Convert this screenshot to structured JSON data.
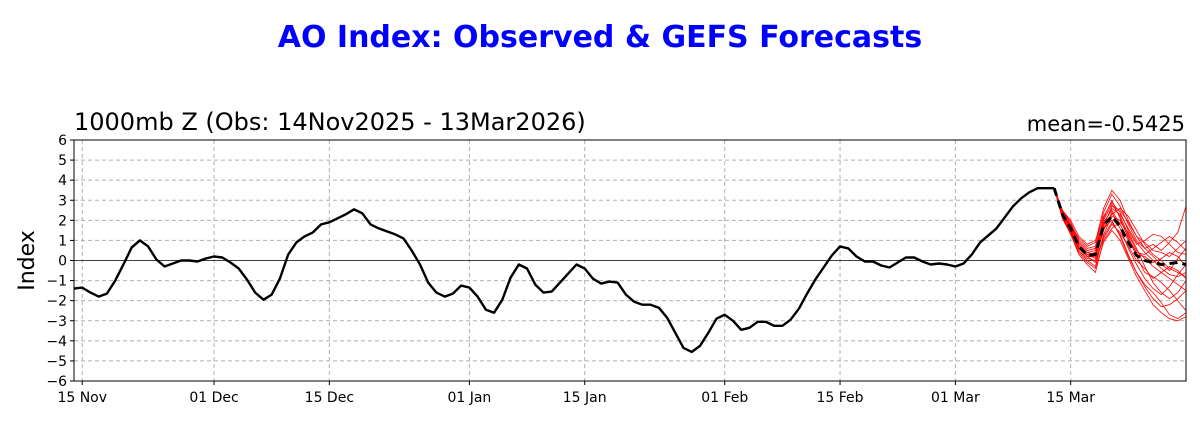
{
  "header": {
    "title": "AO Index: Observed & GEFS Forecasts",
    "subtitle": "1000mb Z (Obs: 14Nov2025 - 13Mar2026)",
    "mean": "mean=-0.5425"
  },
  "chart_data": {
    "type": "line",
    "title": "AO Index: Observed & GEFS Forecasts",
    "subtitle": "1000mb Z (Obs: 14Nov2025 - 13Mar2026)",
    "annotation": "mean=-0.5425",
    "xlabel": "",
    "ylabel": "Index",
    "ylim": [
      -6,
      6
    ],
    "yticks": [
      -6,
      -5,
      -4,
      -3,
      -2,
      -1,
      0,
      1,
      2,
      3,
      4,
      5,
      6
    ],
    "xlim": [
      "2025-11-14",
      "2026-03-29"
    ],
    "xticks": [
      {
        "date": "2025-11-15",
        "label": "15 Nov"
      },
      {
        "date": "2025-12-01",
        "label": "01 Dec"
      },
      {
        "date": "2025-12-15",
        "label": "15 Dec"
      },
      {
        "date": "2026-01-01",
        "label": "01 Jan"
      },
      {
        "date": "2026-01-15",
        "label": "15 Jan"
      },
      {
        "date": "2026-02-01",
        "label": "01 Feb"
      },
      {
        "date": "2026-02-15",
        "label": "15 Feb"
      },
      {
        "date": "2026-03-01",
        "label": "01 Mar"
      },
      {
        "date": "2026-03-15",
        "label": "15 Mar"
      }
    ],
    "grid": true,
    "colors": {
      "observed": "#000000",
      "ensemble": "#ff0000",
      "mean": "#000000",
      "title": "#0000ff"
    },
    "observed": {
      "start": "2025-11-14",
      "values": [
        -1.4,
        -1.35,
        -1.6,
        -1.8,
        -1.65,
        -1.0,
        -0.2,
        0.65,
        1.0,
        0.7,
        0.05,
        -0.3,
        -0.15,
        0.0,
        0.0,
        -0.05,
        0.1,
        0.2,
        0.15,
        -0.1,
        -0.4,
        -0.95,
        -1.6,
        -1.95,
        -1.7,
        -0.9,
        0.3,
        0.9,
        1.2,
        1.4,
        1.8,
        1.9,
        2.1,
        2.3,
        2.55,
        2.35,
        1.8,
        1.6,
        1.45,
        1.3,
        1.1,
        0.5,
        -0.2,
        -1.1,
        -1.6,
        -1.8,
        -1.65,
        -1.25,
        -1.35,
        -1.8,
        -2.45,
        -2.6,
        -1.95,
        -0.85,
        -0.2,
        -0.4,
        -1.2,
        -1.6,
        -1.55,
        -1.1,
        -0.65,
        -0.2,
        -0.4,
        -0.9,
        -1.15,
        -1.05,
        -1.1,
        -1.7,
        -2.05,
        -2.2,
        -2.2,
        -2.35,
        -2.85,
        -3.6,
        -4.35,
        -4.55,
        -4.25,
        -3.6,
        -2.9,
        -2.7,
        -3.0,
        -3.45,
        -3.35,
        -3.05,
        -3.05,
        -3.25,
        -3.25,
        -2.95,
        -2.4,
        -1.65,
        -0.95,
        -0.35,
        0.25,
        0.7,
        0.6,
        0.2,
        -0.05,
        -0.05,
        -0.25,
        -0.35,
        -0.1,
        0.15,
        0.15,
        -0.05,
        -0.2,
        -0.15,
        -0.2,
        -0.3,
        -0.15,
        0.3,
        0.9,
        1.25,
        1.6,
        2.15,
        2.7,
        3.1,
        3.4,
        3.6,
        3.6,
        3.6
      ]
    },
    "forecast_mean": {
      "start": "2026-03-13",
      "values": [
        3.6,
        2.3,
        1.6,
        0.7,
        0.25,
        0.3,
        1.75,
        2.2,
        1.7,
        0.9,
        0.25,
        0.0,
        -0.1,
        -0.2,
        -0.15,
        -0.1,
        -0.2
      ]
    },
    "ensemble": {
      "start": "2026-03-13",
      "members": [
        [
          3.6,
          2.5,
          1.9,
          1.0,
          0.6,
          0.7,
          2.4,
          3.3,
          2.7,
          1.8,
          1.0,
          0.6,
          0.8,
          0.5,
          0.9,
          1.4,
          2.7
        ],
        [
          3.6,
          2.2,
          1.4,
          0.5,
          0.1,
          0.0,
          1.2,
          1.9,
          1.3,
          0.3,
          -0.6,
          -1.2,
          -1.6,
          -2.1,
          -2.7,
          -2.9,
          -2.6
        ],
        [
          3.6,
          2.4,
          1.7,
          0.8,
          0.4,
          0.5,
          2.0,
          2.8,
          2.2,
          1.3,
          0.5,
          0.1,
          -0.3,
          -0.6,
          -0.9,
          -1.2,
          -1.5
        ],
        [
          3.6,
          2.1,
          1.3,
          0.3,
          -0.2,
          -0.6,
          1.0,
          1.6,
          1.9,
          1.4,
          0.6,
          -0.3,
          -1.1,
          -1.6,
          -1.9,
          -1.6,
          -1.0
        ],
        [
          3.6,
          2.3,
          1.8,
          1.1,
          0.7,
          0.9,
          2.6,
          3.5,
          3.0,
          2.0,
          1.2,
          0.9,
          0.5,
          0.4,
          0.2,
          0.6,
          1.0
        ],
        [
          3.6,
          2.2,
          1.5,
          0.6,
          0.2,
          0.2,
          1.6,
          2.0,
          1.2,
          0.2,
          -0.6,
          -1.3,
          -1.9,
          -2.3,
          -2.2,
          -1.9,
          -1.5
        ],
        [
          3.6,
          2.4,
          1.6,
          0.7,
          0.3,
          0.4,
          1.8,
          2.6,
          2.3,
          1.6,
          0.9,
          0.4,
          0.0,
          -0.4,
          -0.7,
          -0.8,
          -0.6
        ],
        [
          3.6,
          2.3,
          1.5,
          0.5,
          0.0,
          -0.3,
          1.3,
          2.2,
          2.0,
          1.2,
          0.2,
          -0.6,
          -0.8,
          -1.1,
          -1.5,
          -2.0,
          -2.5
        ],
        [
          3.6,
          2.5,
          2.0,
          1.2,
          0.8,
          1.0,
          2.2,
          2.9,
          2.4,
          1.5,
          0.8,
          1.0,
          1.3,
          1.2,
          0.8,
          0.4,
          0.3
        ],
        [
          3.6,
          2.1,
          1.4,
          0.6,
          0.3,
          0.1,
          1.5,
          2.4,
          1.6,
          0.6,
          -0.2,
          -0.9,
          -1.4,
          -1.7,
          -1.3,
          -0.7,
          -0.2
        ],
        [
          3.6,
          2.2,
          1.6,
          0.9,
          0.5,
          0.6,
          1.9,
          2.5,
          1.8,
          1.0,
          0.3,
          0.2,
          -0.1,
          0.1,
          0.4,
          0.2,
          -0.3
        ],
        [
          3.6,
          2.4,
          1.7,
          0.7,
          0.2,
          -0.1,
          1.1,
          1.8,
          1.4,
          0.7,
          0.0,
          -0.4,
          -0.9,
          -0.6,
          -0.3,
          -0.5,
          -0.9
        ],
        [
          3.6,
          2.3,
          1.7,
          0.8,
          0.4,
          0.3,
          1.7,
          2.7,
          2.5,
          1.9,
          1.2,
          0.6,
          0.2,
          -0.2,
          -0.5,
          0.1,
          0.6
        ],
        [
          3.6,
          2.2,
          1.3,
          0.4,
          -0.1,
          -0.4,
          0.9,
          1.5,
          1.0,
          0.1,
          -0.8,
          -1.5,
          -2.2,
          -2.6,
          -2.9,
          -3.0,
          -2.8
        ],
        [
          3.6,
          2.5,
          1.8,
          0.9,
          0.5,
          0.6,
          2.1,
          3.0,
          2.1,
          1.1,
          0.4,
          0.3,
          0.6,
          0.9,
          1.2,
          0.9,
          0.5
        ],
        [
          3.6,
          2.3,
          1.5,
          0.6,
          0.2,
          0.3,
          1.6,
          2.3,
          2.6,
          2.2,
          1.5,
          0.8,
          0.3,
          0.0,
          -0.4,
          -0.6,
          -0.8
        ]
      ]
    }
  }
}
